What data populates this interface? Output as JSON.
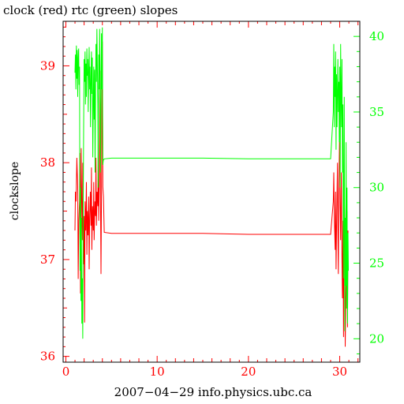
{
  "chart_data": {
    "type": "line",
    "title": "clock (red) rtc (green) slopes",
    "ylabel": "clockslope",
    "footer": "2007−04−29 info.physics.ubc.ca",
    "xlim": [
      -0.3,
      32.2
    ],
    "x_ticks": [
      0,
      10,
      20,
      30
    ],
    "x_tick_labels": [
      "0",
      "10",
      "20",
      "30"
    ],
    "y_left": {
      "lim": [
        35.94,
        39.46
      ],
      "ticks": [
        36,
        37,
        38,
        39
      ],
      "tick_labels": [
        "36",
        "37",
        "38",
        "39"
      ],
      "color": "#ff0000"
    },
    "y_right": {
      "lim": [
        18.45,
        41.0
      ],
      "ticks": [
        20,
        25,
        30,
        35,
        40
      ],
      "tick_labels": [
        "20",
        "25",
        "30",
        "35",
        "40"
      ],
      "color": "#00ff00"
    },
    "series": [
      {
        "color": "#ff0000",
        "axis": "left",
        "x": [
          1.0,
          1.05,
          1.12,
          1.2,
          1.25,
          1.3,
          1.35,
          1.42,
          1.5,
          1.55,
          1.6,
          1.68,
          1.75,
          1.8,
          1.85,
          1.92,
          2.0,
          2.05,
          2.1,
          2.18,
          2.25,
          2.3,
          2.35,
          2.42,
          2.5,
          2.55,
          2.6,
          2.68,
          2.75,
          2.8,
          2.85,
          2.92,
          3.0,
          3.05,
          3.1,
          3.18,
          3.25,
          3.3,
          3.35,
          3.42,
          3.5,
          3.55,
          3.6,
          3.68,
          3.75,
          3.8,
          3.85,
          3.92,
          4.0,
          4.05,
          4.12,
          4.2,
          5.0,
          10.0,
          15.0,
          20.0,
          25.0,
          29.0,
          29.3,
          29.35,
          29.42,
          29.5,
          29.55,
          29.6,
          29.68,
          29.75,
          29.8,
          29.85,
          29.92,
          30.0,
          30.05,
          30.1,
          30.18,
          30.25,
          30.3,
          30.35,
          30.42,
          30.5,
          30.55,
          30.6,
          30.68,
          30.75,
          30.8,
          30.85,
          30.9
        ],
        "y": [
          37.3,
          37.7,
          37.6,
          38.05,
          37.9,
          37.75,
          36.8,
          37.4,
          37.6,
          38.1,
          36.65,
          38.15,
          37.5,
          37.2,
          38.0,
          36.95,
          37.45,
          36.35,
          37.6,
          37.3,
          37.8,
          37.05,
          37.5,
          37.25,
          37.65,
          36.9,
          37.4,
          37.7,
          37.35,
          37.95,
          37.1,
          37.55,
          37.3,
          37.8,
          37.2,
          37.6,
          37.45,
          38.05,
          37.35,
          37.7,
          37.55,
          38.25,
          37.4,
          37.85,
          38.95,
          37.6,
          36.85,
          37.9,
          39.25,
          37.75,
          37.65,
          37.28,
          37.27,
          37.27,
          37.27,
          37.26,
          37.26,
          37.26,
          37.6,
          37.9,
          37.4,
          37.1,
          37.7,
          36.9,
          37.5,
          38.0,
          37.3,
          36.85,
          37.8,
          38.4,
          37.55,
          37.2,
          37.9,
          37.0,
          36.6,
          37.4,
          36.2,
          37.7,
          37.3,
          36.1,
          36.7,
          37.0,
          37.5,
          36.3,
          37.3
        ]
      },
      {
        "color": "#00ff00",
        "axis": "right",
        "x": [
          1.0,
          1.05,
          1.1,
          1.15,
          1.2,
          1.25,
          1.3,
          1.35,
          1.4,
          1.45,
          1.5,
          1.55,
          1.6,
          1.65,
          1.7,
          1.75,
          1.8,
          1.85,
          1.9,
          1.95,
          2.0,
          2.05,
          2.1,
          2.15,
          2.2,
          2.25,
          2.3,
          2.35,
          2.4,
          2.45,
          2.5,
          2.55,
          2.6,
          2.65,
          2.7,
          2.75,
          2.8,
          2.85,
          2.9,
          2.95,
          3.0,
          3.05,
          3.1,
          3.15,
          3.2,
          3.25,
          3.3,
          3.35,
          3.4,
          3.45,
          3.5,
          3.55,
          3.6,
          3.65,
          3.7,
          3.75,
          3.8,
          3.85,
          3.9,
          3.95,
          4.0,
          4.05,
          4.1,
          4.2,
          5.0,
          10.0,
          15.0,
          20.0,
          25.0,
          29.0,
          29.3,
          29.35,
          29.4,
          29.45,
          29.5,
          29.55,
          29.6,
          29.65,
          29.7,
          29.75,
          29.8,
          29.85,
          29.9,
          29.95,
          30.0,
          30.05,
          30.1,
          30.15,
          30.2,
          30.25,
          30.3,
          30.35,
          30.4,
          30.45,
          30.5,
          30.55,
          30.6,
          30.65,
          30.7,
          30.75,
          30.8,
          30.85,
          30.9,
          30.95
        ],
        "y": [
          37.6,
          38.8,
          36.5,
          39.4,
          37.2,
          39.1,
          36.0,
          38.6,
          39.2,
          36.8,
          38.0,
          24.5,
          30.0,
          22.5,
          28.0,
          21.0,
          24.0,
          20.0,
          29.0,
          34.0,
          38.5,
          37.0,
          39.0,
          35.5,
          38.2,
          36.0,
          39.2,
          37.4,
          38.5,
          35.0,
          37.8,
          39.3,
          36.5,
          38.0,
          34.0,
          37.0,
          39.0,
          36.2,
          38.6,
          32.0,
          35.5,
          38.0,
          34.5,
          37.8,
          31.0,
          36.5,
          39.5,
          37.0,
          40.5,
          38.0,
          35.5,
          30.0,
          38.8,
          36.5,
          40.5,
          37.5,
          31.0,
          35.0,
          40.2,
          36.5,
          40.6,
          31.5,
          31.8,
          31.9,
          31.95,
          31.95,
          31.95,
          31.9,
          31.9,
          31.9,
          35.0,
          39.5,
          34.0,
          38.0,
          36.0,
          39.0,
          32.5,
          37.5,
          34.0,
          36.5,
          38.5,
          35.0,
          37.0,
          33.0,
          38.0,
          30.0,
          39.5,
          36.0,
          34.0,
          38.5,
          31.0,
          35.5,
          24.0,
          30.0,
          36.0,
          20.5,
          28.0,
          23.5,
          33.0,
          22.0,
          30.0,
          21.0,
          27.0,
          24.5
        ]
      }
    ]
  }
}
